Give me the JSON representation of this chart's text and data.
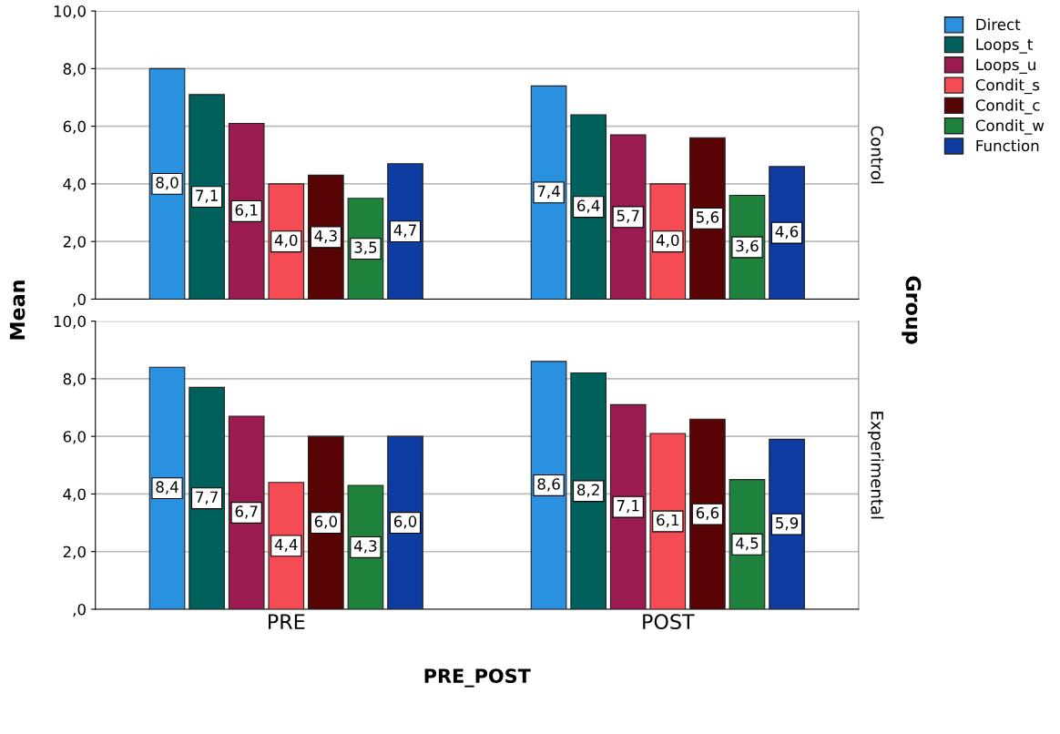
{
  "chart_data": [
    {
      "type": "bar",
      "ylabel": "Mean",
      "y2label": "Group",
      "annotations": [
        "Control"
      ],
      "ylim": [
        0,
        10
      ],
      "yticks": [
        {
          "value": 0,
          "label": ",0"
        },
        {
          "value": 2,
          "label": "2,0"
        },
        {
          "value": 4,
          "label": "4,0"
        },
        {
          "value": 6,
          "label": "6,0"
        },
        {
          "value": 8,
          "label": "8,0"
        },
        {
          "value": 10,
          "label": "10,0"
        }
      ],
      "grid": "y",
      "legend": "top right",
      "tick_labels": "y",
      "series": [
        {
          "name": "Direct",
          "color": "#2a90e0",
          "values": [
            8.0,
            7.4
          ],
          "value_labels": [
            "8,0",
            "7,4"
          ]
        },
        {
          "name": "Loops_t",
          "color": "#00605c",
          "values": [
            7.1,
            6.4
          ],
          "value_labels": [
            "7,1",
            "6,4"
          ]
        },
        {
          "name": "Loops_u",
          "color": "#9b1a50",
          "values": [
            6.1,
            5.7
          ],
          "value_labels": [
            "6,1",
            "5,7"
          ]
        },
        {
          "name": "Condit_s",
          "color": "#f44b55",
          "values": [
            4.0,
            4.0
          ],
          "value_labels": [
            "4,0",
            "4,0"
          ]
        },
        {
          "name": "Condit_c",
          "color": "#580405",
          "values": [
            4.3,
            5.6
          ],
          "value_labels": [
            "4,3",
            "5,6"
          ]
        },
        {
          "name": "Condit_w",
          "color": "#1e823c",
          "values": [
            3.5,
            3.6
          ],
          "value_labels": [
            "3,5",
            "3,6"
          ]
        },
        {
          "name": "Function",
          "color": "#0f3ca0",
          "values": [
            4.7,
            4.6
          ],
          "value_labels": [
            "4,7",
            "4,6"
          ]
        }
      ]
    },
    {
      "type": "bar",
      "categories": [
        "PRE",
        "POST"
      ],
      "xlabel": "PRE_POST",
      "annotations": [
        "Experimental"
      ],
      "ylim": [
        0,
        10
      ],
      "yticks": [
        {
          "value": 0,
          "label": ",0"
        },
        {
          "value": 2,
          "label": "2,0"
        },
        {
          "value": 4,
          "label": "4,0"
        },
        {
          "value": 6,
          "label": "6,0"
        },
        {
          "value": 8,
          "label": "8,0"
        },
        {
          "value": 10,
          "label": "10,0"
        }
      ],
      "grid": "y",
      "series": [
        {
          "color": "#2a90e0",
          "values": [
            8.4,
            8.6
          ],
          "value_labels": [
            "8,4",
            "8,6"
          ]
        },
        {
          "color": "#00605c",
          "values": [
            7.7,
            8.2
          ],
          "value_labels": [
            "7,7",
            "8,2"
          ]
        },
        {
          "color": "#9b1a50",
          "values": [
            6.7,
            7.1
          ],
          "value_labels": [
            "6,7",
            "7,1"
          ]
        },
        {
          "color": "#f44b55",
          "values": [
            4.4,
            6.1
          ],
          "value_labels": [
            "4,4",
            "6,1"
          ]
        },
        {
          "color": "#580405",
          "values": [
            6.0,
            6.6
          ],
          "value_labels": [
            "6,0",
            "6,6"
          ]
        },
        {
          "color": "#1e823c",
          "values": [
            4.3,
            4.5
          ],
          "value_labels": [
            "4,3",
            "4,5"
          ]
        },
        {
          "color": "#0f3ca0",
          "values": [
            6.0,
            5.9
          ],
          "value_labels": [
            "6,0",
            "5,9"
          ]
        }
      ]
    }
  ]
}
